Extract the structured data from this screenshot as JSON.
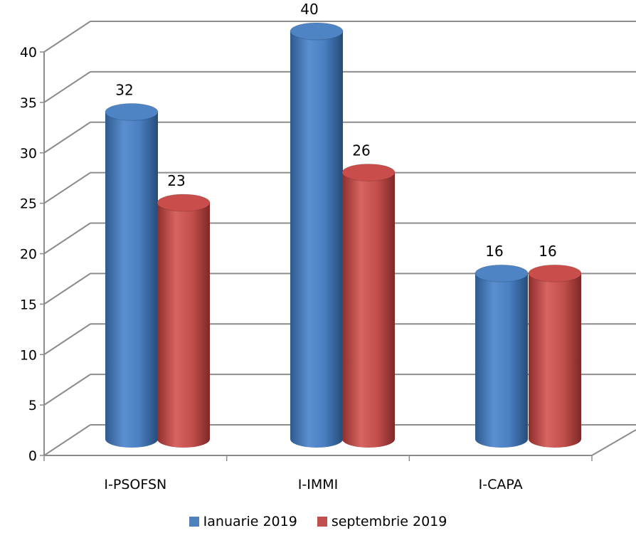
{
  "chart_data": {
    "type": "bar",
    "title": "",
    "xlabel": "",
    "ylabel": "",
    "categories": [
      "I-PSOFSN",
      "I-IMMI",
      "I-CAPA"
    ],
    "series": [
      {
        "name": "Ianuarie 2019",
        "values": [
          32,
          40,
          16
        ],
        "color": "#4F81BD",
        "labels": [
          "32",
          "40",
          "16"
        ]
      },
      {
        "name": "septembrie 2019",
        "values": [
          23,
          26,
          16
        ],
        "color": "#C0504D",
        "labels": [
          "23",
          "26",
          "16"
        ]
      }
    ],
    "ylim": [
      0,
      40
    ],
    "yticks": [
      "0",
      "5",
      "10",
      "15",
      "20",
      "25",
      "30",
      "35",
      "40"
    ],
    "grid": true,
    "style": "3d-cylinder",
    "legend_position": "bottom"
  }
}
